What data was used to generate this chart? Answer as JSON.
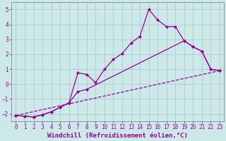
{
  "background_color": "#cce8e8",
  "grid_color": "#aacccc",
  "line_color": "#990099",
  "marker": "D",
  "markersize": 2.5,
  "linewidth": 0.9,
  "xlabel": "Windchill (Refroidissement éolien,°C)",
  "xlabel_fontsize": 6.5,
  "tick_fontsize": 5.5,
  "xlim": [
    -0.5,
    23.5
  ],
  "ylim": [
    -2.5,
    5.5
  ],
  "yticks": [
    -2,
    -1,
    0,
    1,
    2,
    3,
    4,
    5
  ],
  "xticks": [
    0,
    1,
    2,
    3,
    4,
    5,
    6,
    7,
    8,
    9,
    10,
    11,
    12,
    13,
    14,
    15,
    16,
    17,
    18,
    19,
    20,
    21,
    22,
    23
  ],
  "line1_x": [
    0,
    1,
    2,
    3,
    4,
    5,
    6,
    7,
    8,
    9,
    10,
    11,
    12,
    13,
    14,
    15,
    16,
    17,
    18,
    19,
    20,
    21,
    22,
    23
  ],
  "line1_y": [
    -2.1,
    -2.15,
    -2.2,
    -2.05,
    -1.85,
    -1.55,
    -1.25,
    0.75,
    0.65,
    0.1,
    1.0,
    1.65,
    2.05,
    2.75,
    3.2,
    5.0,
    4.3,
    3.85,
    3.85,
    2.9,
    2.5,
    2.2,
    1.0,
    0.9
  ],
  "line2_x": [
    0,
    1,
    2,
    3,
    4,
    5,
    6,
    7,
    8,
    19,
    20,
    21,
    22,
    23
  ],
  "line2_y": [
    -2.1,
    -2.15,
    -2.2,
    -2.05,
    -1.85,
    -1.55,
    -1.25,
    -0.5,
    -0.35,
    2.9,
    2.5,
    2.2,
    1.0,
    0.9
  ],
  "line3_x": [
    0,
    23
  ],
  "line3_y": [
    -2.1,
    0.9
  ]
}
